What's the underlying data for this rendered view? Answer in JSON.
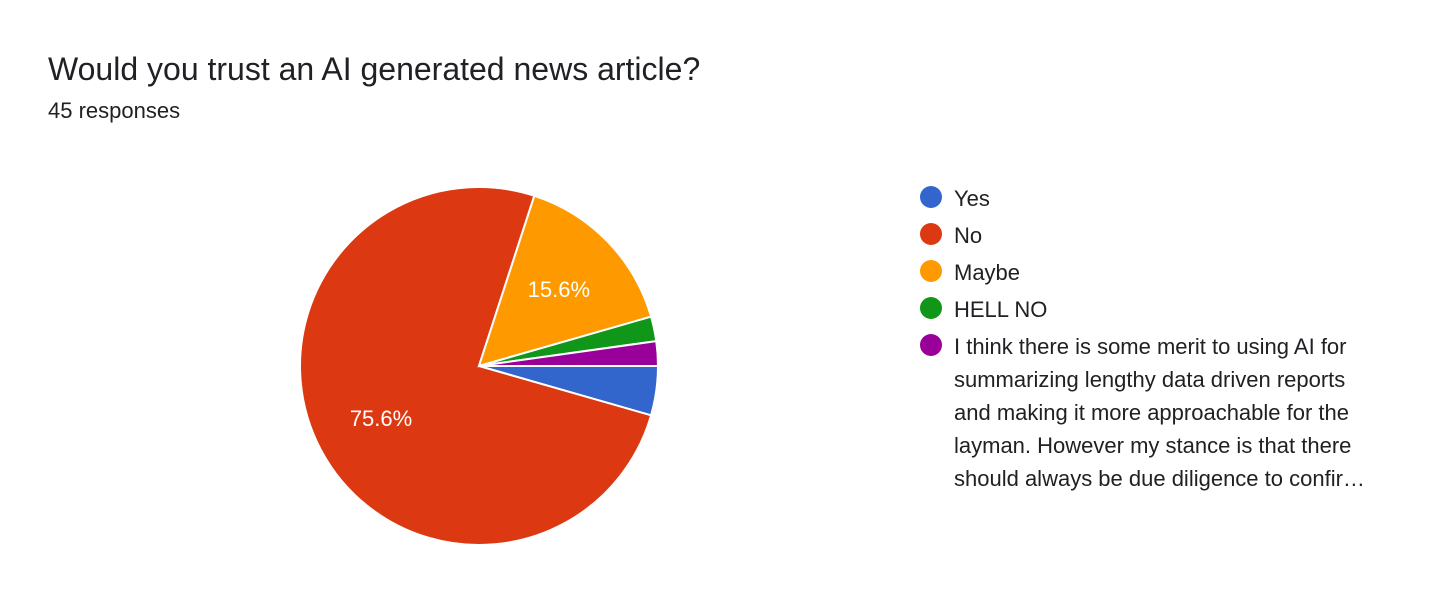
{
  "chart_data": {
    "type": "pie",
    "title": "Would you trust an AI generated news article?",
    "subtitle": "45 responses",
    "total_responses": 45,
    "slices": [
      {
        "name": "Yes",
        "value": 2,
        "percent": 4.4,
        "color": "#3366cc",
        "label": ""
      },
      {
        "name": "No",
        "value": 34,
        "percent": 75.6,
        "color": "#dc3912",
        "label": "75.6%"
      },
      {
        "name": "Maybe",
        "value": 7,
        "percent": 15.6,
        "color": "#ff9900",
        "label": "15.6%"
      },
      {
        "name": "HELL NO",
        "value": 1,
        "percent": 2.2,
        "color": "#109618",
        "label": ""
      },
      {
        "name": "I think there is some merit to using AI for summarizing lengthy data driven reports and making it more approachable for the layman. However my stance is that there should always be due diligence to confirm there is no hallucination—but I…",
        "value": 1,
        "percent": 2.2,
        "color": "#990099",
        "label": ""
      }
    ],
    "start_angle_deg": 0,
    "direction": "clockwise-from-3-oclock",
    "legend_position": "right"
  }
}
